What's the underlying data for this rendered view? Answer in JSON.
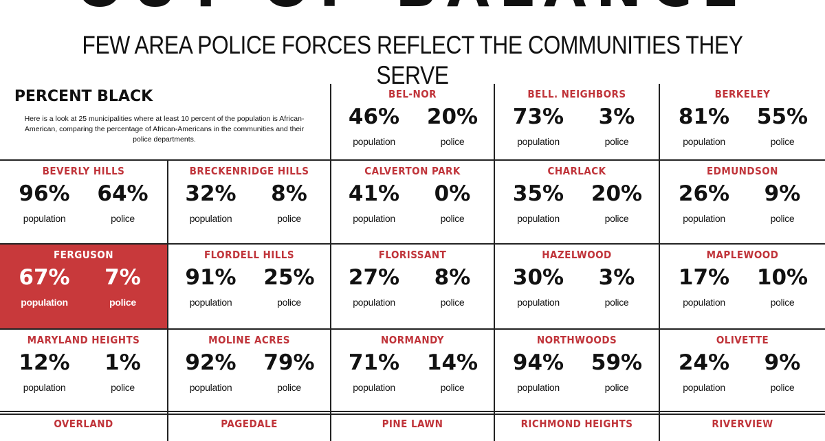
{
  "header": {
    "title": "OUT OF BALANCE",
    "subtitle": "FEW AREA POLICE FORCES REFLECT THE COMMUNITIES THEY SERVE"
  },
  "intro": {
    "title": "PERCENT BLACK",
    "text": "Here is a look at 25 municipalities where at least 10 percent of the population is African-American, comparing the percentage of African-Americans in the communities and their police departments."
  },
  "labels": {
    "population": "population",
    "police": "police"
  },
  "colors": {
    "accent": "#c8393b",
    "name_text": "#c0343a"
  },
  "chart_data": {
    "type": "table",
    "title": "PERCENT BLACK",
    "columns": [
      "municipality",
      "population",
      "police"
    ],
    "highlighted": "FERGUSON",
    "rows": [
      {
        "name": "BEL-NOR",
        "population": "46%",
        "police": "20%"
      },
      {
        "name": "BELL. NEIGHBORS",
        "population": "73%",
        "police": "3%"
      },
      {
        "name": "BERKELEY",
        "population": "81%",
        "police": "55%"
      },
      {
        "name": "BEVERLY HILLS",
        "population": "96%",
        "police": "64%"
      },
      {
        "name": "BRECKENRIDGE HILLS",
        "population": "32%",
        "police": "8%"
      },
      {
        "name": "CALVERTON PARK",
        "population": "41%",
        "police": "0%"
      },
      {
        "name": "CHARLACK",
        "population": "35%",
        "police": "20%"
      },
      {
        "name": "EDMUNDSON",
        "population": "26%",
        "police": "9%"
      },
      {
        "name": "FERGUSON",
        "population": "67%",
        "police": "7%"
      },
      {
        "name": "FLORDELL HILLS",
        "population": "91%",
        "police": "25%"
      },
      {
        "name": "FLORISSANT",
        "population": "27%",
        "police": "8%"
      },
      {
        "name": "HAZELWOOD",
        "population": "30%",
        "police": "3%"
      },
      {
        "name": "MAPLEWOOD",
        "population": "17%",
        "police": "10%"
      },
      {
        "name": "MARYLAND HEIGHTS",
        "population": "12%",
        "police": "1%"
      },
      {
        "name": "MOLINE ACRES",
        "population": "92%",
        "police": "79%"
      },
      {
        "name": "NORMANDY",
        "population": "71%",
        "police": "14%"
      },
      {
        "name": "NORTHWOODS",
        "population": "94%",
        "police": "59%"
      },
      {
        "name": "OLIVETTE",
        "population": "24%",
        "police": "9%"
      },
      {
        "name": "OVERLAND"
      },
      {
        "name": "PAGEDALE"
      },
      {
        "name": "PINE LAWN"
      },
      {
        "name": "RICHMOND HEIGHTS"
      },
      {
        "name": "RIVERVIEW"
      }
    ]
  }
}
